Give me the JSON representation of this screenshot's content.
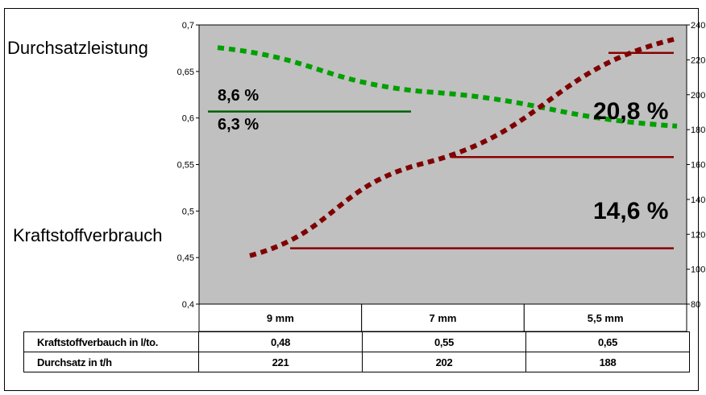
{
  "labels": {
    "left_series": "Durchsatzleistung",
    "lower_series": "Kraftstoffverbrauch"
  },
  "annotations": {
    "pct_upper_left": "8,6 %",
    "pct_lower_left": "6,3 %",
    "pct_right_top": "20,8 %",
    "pct_right_bottom": "14,6 %"
  },
  "colors": {
    "plot_background": "#c0c0c0",
    "throughput_series": "#00a000",
    "fuel_series": "#800000",
    "throughput_reference": "#006000",
    "fuel_reference": "#8b0000"
  },
  "chart_data": {
    "type": "line",
    "categories": [
      "9 mm",
      "7 mm",
      "5,5 mm"
    ],
    "y_left": {
      "range": [
        0.4,
        0.7
      ],
      "ticks": [
        "0,4",
        "0,45",
        "0,5",
        "0,55",
        "0,6",
        "0,65",
        "0,7"
      ]
    },
    "y_right": {
      "range": [
        80,
        240
      ],
      "ticks": [
        "80",
        "100",
        "120",
        "140",
        "160",
        "180",
        "200",
        "220",
        "240"
      ]
    },
    "grid": false,
    "series": [
      {
        "name": "Kraftstoffverbauch in l/to.",
        "axis": "left",
        "values": [
          0.48,
          0.55,
          0.65
        ],
        "display": [
          "0,48",
          "0,55",
          "0,65"
        ]
      },
      {
        "name": "Durchsatz in t/h",
        "axis": "right",
        "values": [
          221,
          202,
          188
        ],
        "display": [
          "221",
          "202",
          "188"
        ]
      }
    ]
  }
}
